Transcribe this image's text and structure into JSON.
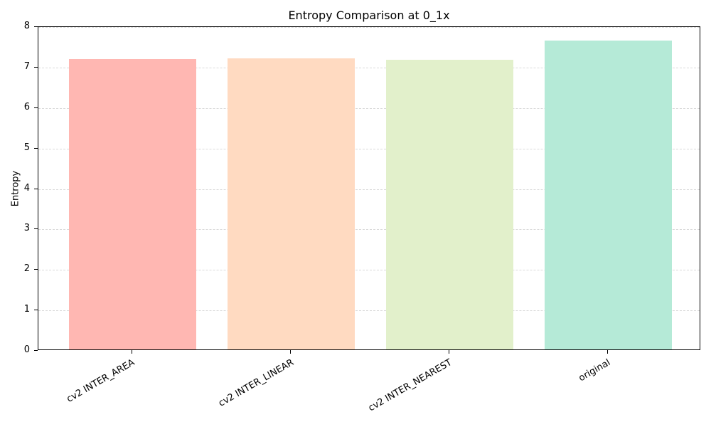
{
  "chart_data": {
    "type": "bar",
    "title": "Entropy Comparison at 0_1x",
    "xlabel": "",
    "ylabel": "Entropy",
    "categories": [
      "cv2 INTER_AREA",
      "cv2 INTER_LINEAR",
      "cv2 INTER_NEAREST",
      "original"
    ],
    "values": [
      7.17,
      7.19,
      7.15,
      7.63
    ],
    "colors": [
      "#FFB7B2",
      "#FFDAC1",
      "#E2F0CB",
      "#B5EAD7"
    ],
    "ylim": [
      0,
      8
    ],
    "yticks": [
      0,
      1,
      2,
      3,
      4,
      5,
      6,
      7,
      8
    ],
    "grid": {
      "axis": "y",
      "style": "dashed",
      "on": true
    },
    "legend": null,
    "xtick_rotation": 30
  }
}
